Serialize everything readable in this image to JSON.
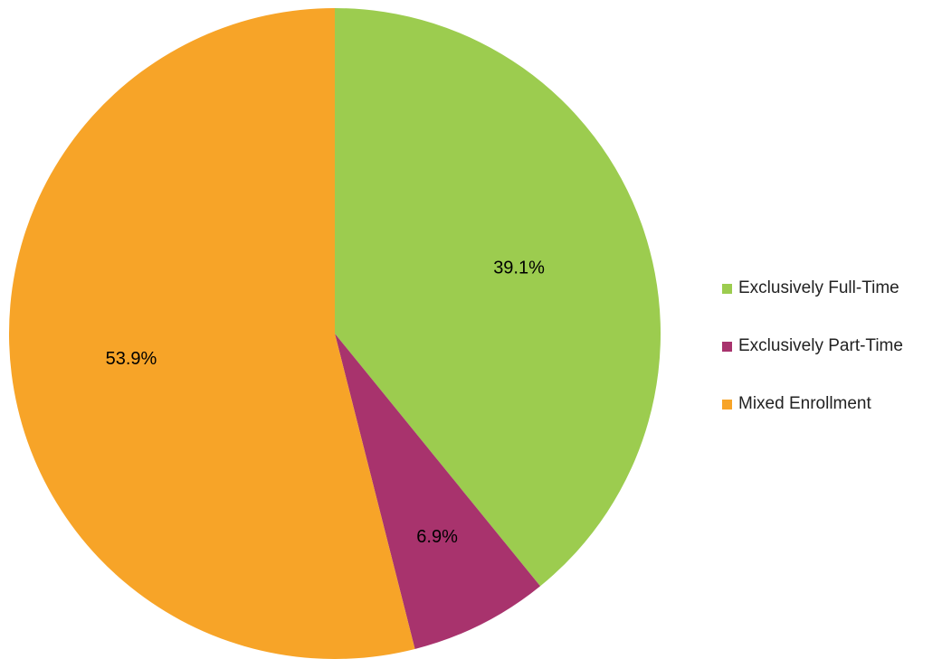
{
  "chart_data": {
    "type": "pie",
    "categories": [
      "Exclusively Full-Time",
      "Exclusively Part-Time",
      "Mixed Enrollment"
    ],
    "values": [
      39.1,
      6.9,
      53.9
    ],
    "data_labels": [
      "39.1%",
      "6.9%",
      "53.9%"
    ],
    "colors": [
      "#9ccc4f",
      "#a8336d",
      "#f7a428"
    ],
    "start_angle": "12 o'clock",
    "direction": "clockwise",
    "legend_placement": "right",
    "title": ""
  },
  "legend": {
    "items": [
      {
        "label": "Exclusively Full-Time",
        "color": "#9ccc4f"
      },
      {
        "label": "Exclusively Part-Time",
        "color": "#a8336d"
      },
      {
        "label": "Mixed Enrollment",
        "color": "#f7a428"
      }
    ]
  }
}
